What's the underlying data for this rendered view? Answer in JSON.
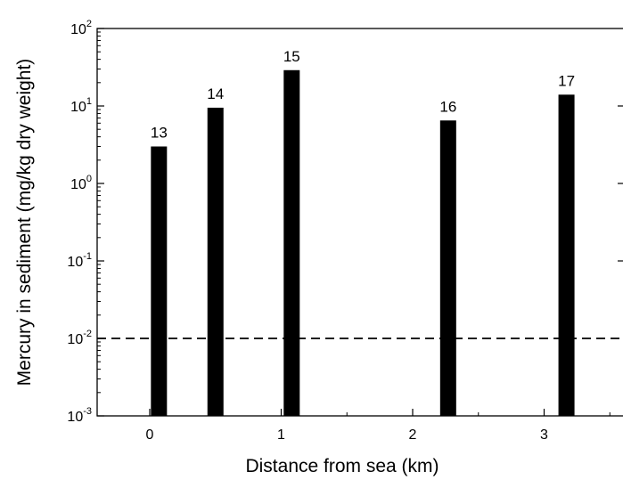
{
  "chart_data": {
    "type": "bar",
    "xlabel": "Distance from sea (km)",
    "ylabel": "Mercury in sediment (mg/kg dry weight)",
    "yscale": "log",
    "ylim": [
      0.001,
      100
    ],
    "xlim": [
      -0.4,
      3.6
    ],
    "x_ticks": [
      0,
      1,
      2,
      3
    ],
    "y_ticks": [
      {
        "base": "10",
        "exp": "-3",
        "value": 0.001
      },
      {
        "base": "10",
        "exp": "-2",
        "value": 0.01
      },
      {
        "base": "10",
        "exp": "-1",
        "value": 0.1
      },
      {
        "base": "10",
        "exp": "0",
        "value": 1
      },
      {
        "base": "10",
        "exp": "1",
        "value": 10
      },
      {
        "base": "10",
        "exp": "2",
        "value": 100
      }
    ],
    "bars": [
      {
        "label": "13",
        "x": 0.07,
        "value": 3.0
      },
      {
        "label": "14",
        "x": 0.5,
        "value": 9.5
      },
      {
        "label": "15",
        "x": 1.08,
        "value": 29
      },
      {
        "label": "16",
        "x": 2.27,
        "value": 6.5
      },
      {
        "label": "17",
        "x": 3.17,
        "value": 14
      }
    ],
    "reference_line": {
      "value": 0.01,
      "style": "dashed"
    },
    "colors": {
      "bar": "#000000",
      "axis": "#000000",
      "background": "#ffffff"
    }
  }
}
